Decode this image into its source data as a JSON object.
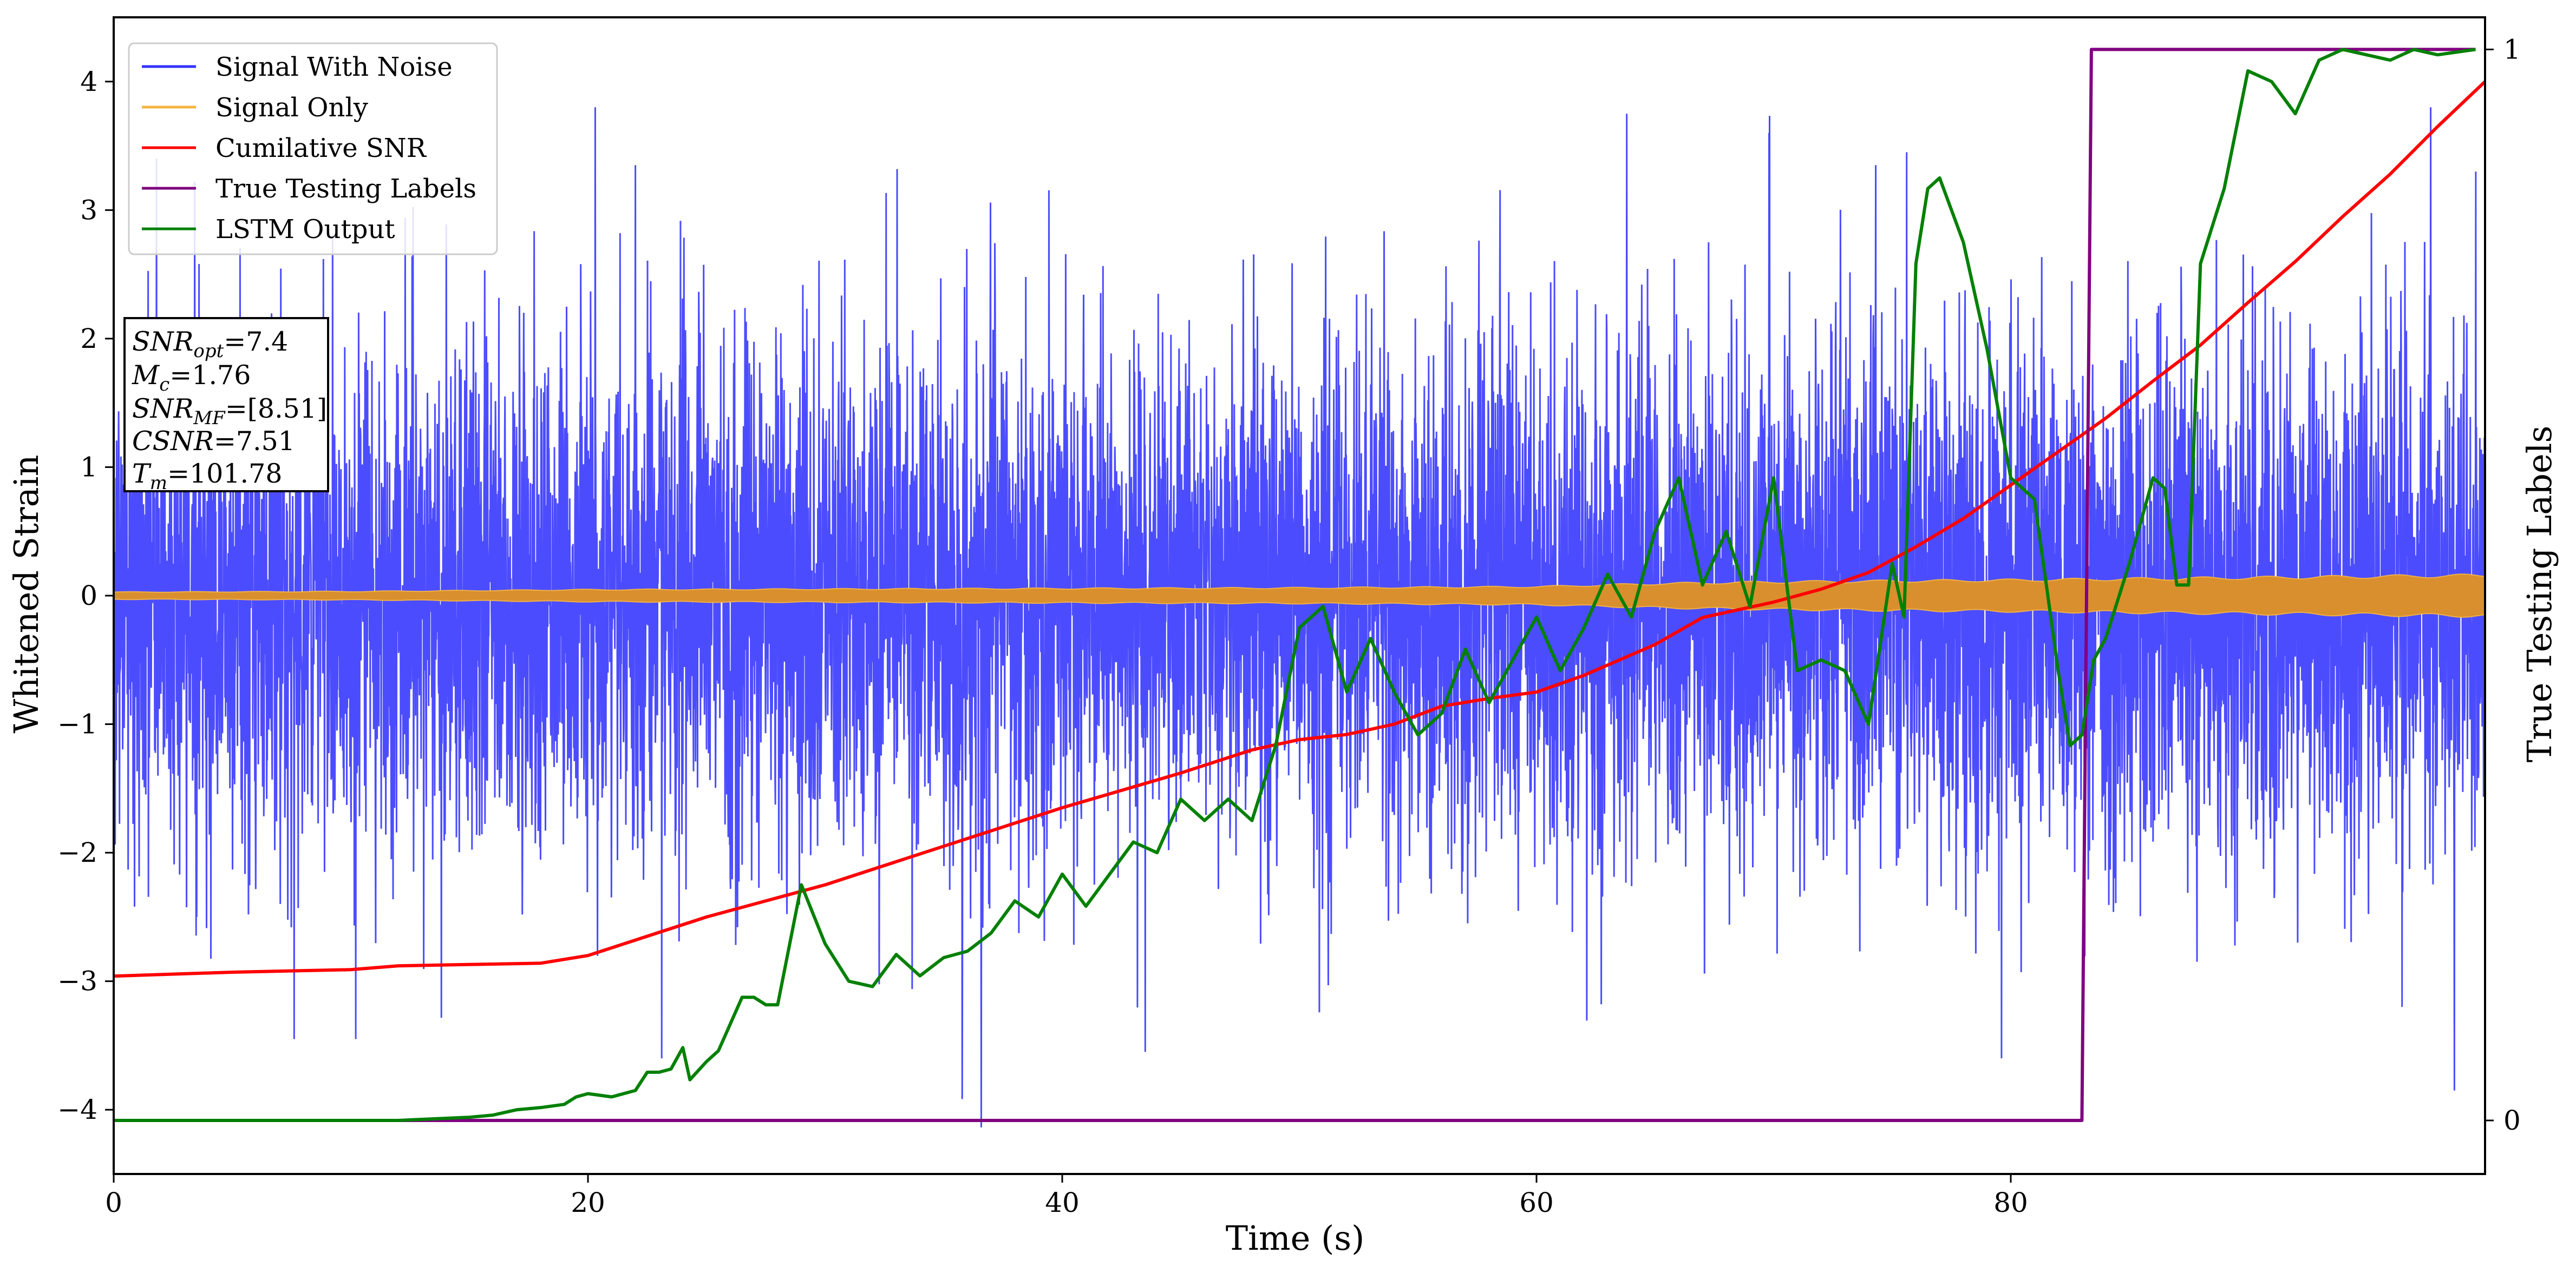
{
  "chart_data": {
    "type": "line",
    "xlabel": "Time (s)",
    "ylabel": "Whitened Strain",
    "y2label": "True Testing Labels",
    "xlim": [
      0,
      100
    ],
    "ylim": [
      -4.5,
      4.5
    ],
    "y2lim": [
      -0.05,
      1.03
    ],
    "xticks": [
      0,
      20,
      40,
      60,
      80
    ],
    "yticks": [
      -4,
      -3,
      -2,
      -1,
      0,
      1,
      2,
      3,
      4
    ],
    "y2ticks": [
      0,
      1
    ],
    "grid": false,
    "legend_position": "top-left",
    "legend": [
      {
        "label": "Signal With Noise",
        "color": "#3333ff"
      },
      {
        "label": "Signal Only",
        "color": "#f5b642"
      },
      {
        "label": "Cumilative SNR",
        "color": "#ff0000"
      },
      {
        "label": "True Testing Labels",
        "color": "#800080"
      },
      {
        "label": "LSTM Output",
        "color": "#008000"
      }
    ],
    "annotation_lines": [
      {
        "base": "SNR",
        "sub": "opt",
        "value": "=7.4"
      },
      {
        "base": "M",
        "sub": "c",
        "value": "=1.76"
      },
      {
        "base": "SNR",
        "sub": "MF",
        "value": "=[8.51]"
      },
      {
        "base": "CSNR",
        "sub": "",
        "value": "=7.51"
      },
      {
        "base": "T",
        "sub": "m",
        "value": "=101.78"
      }
    ],
    "series": [
      {
        "name": "Signal With Noise",
        "color": "#3333ff",
        "axis": "left",
        "kind": "dense_noise",
        "x_range": [
          0,
          100
        ],
        "sigma": 1.0,
        "peak_samples": [
          {
            "x": 1.8,
            "y": 3.4
          },
          {
            "x": 3.5,
            "y": -2.5
          },
          {
            "x": 7.6,
            "y": -3.45
          },
          {
            "x": 10.2,
            "y": -3.45
          },
          {
            "x": 20.3,
            "y": 3.8
          },
          {
            "x": 22.0,
            "y": 3.35
          },
          {
            "x": 23.1,
            "y": -3.6
          },
          {
            "x": 43.5,
            "y": -3.55
          },
          {
            "x": 63.8,
            "y": 3.75
          },
          {
            "x": 69.8,
            "y": 3.6
          },
          {
            "x": 74.3,
            "y": 3.35
          },
          {
            "x": 75.6,
            "y": 3.45
          },
          {
            "x": 79.6,
            "y": -3.6
          },
          {
            "x": 96.5,
            "y": -3.2
          },
          {
            "x": 97.7,
            "y": 3.8
          },
          {
            "x": 98.7,
            "y": -3.85
          },
          {
            "x": 99.6,
            "y": 3.3
          }
        ]
      },
      {
        "name": "Signal Only",
        "color": "#f5b642",
        "axis": "left",
        "kind": "envelope",
        "x": [
          0,
          10,
          20,
          30,
          40,
          50,
          55,
          60,
          65,
          70,
          80,
          90,
          100
        ],
        "amplitude": [
          0.03,
          0.035,
          0.05,
          0.055,
          0.06,
          0.065,
          0.07,
          0.075,
          0.1,
          0.115,
          0.13,
          0.15,
          0.17
        ]
      },
      {
        "name": "Cumilative SNR",
        "color": "#ff0000",
        "axis": "left",
        "x": [
          0,
          5,
          10,
          12,
          15,
          18,
          20,
          23,
          25,
          30,
          35,
          40,
          45,
          48,
          50,
          52,
          54,
          56,
          58,
          60,
          62,
          65,
          67,
          70,
          72,
          74,
          76,
          78,
          80,
          82,
          84,
          86,
          88,
          90,
          92,
          94,
          96,
          98,
          100
        ],
        "y": [
          -2.96,
          -2.93,
          -2.91,
          -2.88,
          -2.87,
          -2.86,
          -2.8,
          -2.62,
          -2.5,
          -2.25,
          -1.95,
          -1.65,
          -1.38,
          -1.2,
          -1.12,
          -1.08,
          -1.0,
          -0.86,
          -0.8,
          -0.75,
          -0.62,
          -0.38,
          -0.17,
          -0.05,
          0.05,
          0.18,
          0.38,
          0.6,
          0.86,
          1.12,
          1.38,
          1.67,
          1.95,
          2.28,
          2.6,
          2.95,
          3.28,
          3.65,
          4.0
        ]
      },
      {
        "name": "True Testing Labels",
        "color": "#800080",
        "axis": "right",
        "x": [
          0,
          83.0,
          83.4,
          99.6
        ],
        "y": [
          0,
          0,
          1,
          1
        ]
      },
      {
        "name": "LSTM Output",
        "color": "#008000",
        "axis": "right",
        "x": [
          0,
          12,
          15,
          16,
          17,
          18,
          19,
          19.5,
          20,
          21,
          22,
          22.5,
          23,
          23.5,
          24,
          24.3,
          25,
          25.5,
          26,
          26.5,
          27,
          27.5,
          28,
          29,
          30,
          31,
          32,
          33,
          34,
          35,
          36,
          37,
          38,
          39,
          40,
          41,
          42,
          43,
          44,
          45,
          46,
          47,
          48,
          49,
          50,
          51,
          52,
          53,
          54,
          55,
          56,
          57,
          58,
          59,
          60,
          61,
          62,
          63,
          64,
          65,
          66,
          67,
          68,
          69,
          70,
          71,
          72,
          73,
          74,
          75,
          75.5,
          76,
          76.5,
          77,
          77.5,
          78,
          79,
          80,
          81,
          82,
          82.5,
          83,
          83.5,
          84,
          85,
          86,
          86.5,
          87,
          87.5,
          88,
          89,
          90,
          91,
          92,
          93,
          94,
          95,
          96,
          97,
          98,
          99.6
        ],
        "y": [
          0,
          0,
          0.003,
          0.005,
          0.01,
          0.012,
          0.015,
          0.022,
          0.025,
          0.022,
          0.028,
          0.045,
          0.045,
          0.048,
          0.068,
          0.038,
          0.055,
          0.065,
          0.09,
          0.115,
          0.115,
          0.108,
          0.108,
          0.22,
          0.165,
          0.13,
          0.125,
          0.155,
          0.135,
          0.152,
          0.158,
          0.175,
          0.205,
          0.19,
          0.23,
          0.2,
          0.23,
          0.26,
          0.25,
          0.3,
          0.28,
          0.3,
          0.28,
          0.35,
          0.46,
          0.48,
          0.4,
          0.45,
          0.4,
          0.36,
          0.38,
          0.44,
          0.39,
          0.43,
          0.47,
          0.42,
          0.46,
          0.51,
          0.47,
          0.55,
          0.6,
          0.5,
          0.55,
          0.48,
          0.6,
          0.42,
          0.43,
          0.42,
          0.37,
          0.52,
          0.47,
          0.8,
          0.87,
          0.88,
          0.85,
          0.82,
          0.72,
          0.6,
          0.58,
          0.42,
          0.35,
          0.36,
          0.43,
          0.45,
          0.52,
          0.6,
          0.59,
          0.5,
          0.5,
          0.8,
          0.87,
          0.98,
          0.97,
          0.94,
          0.99,
          1.0,
          0.995,
          0.99,
          1.0,
          0.995,
          1.0
        ]
      }
    ]
  }
}
